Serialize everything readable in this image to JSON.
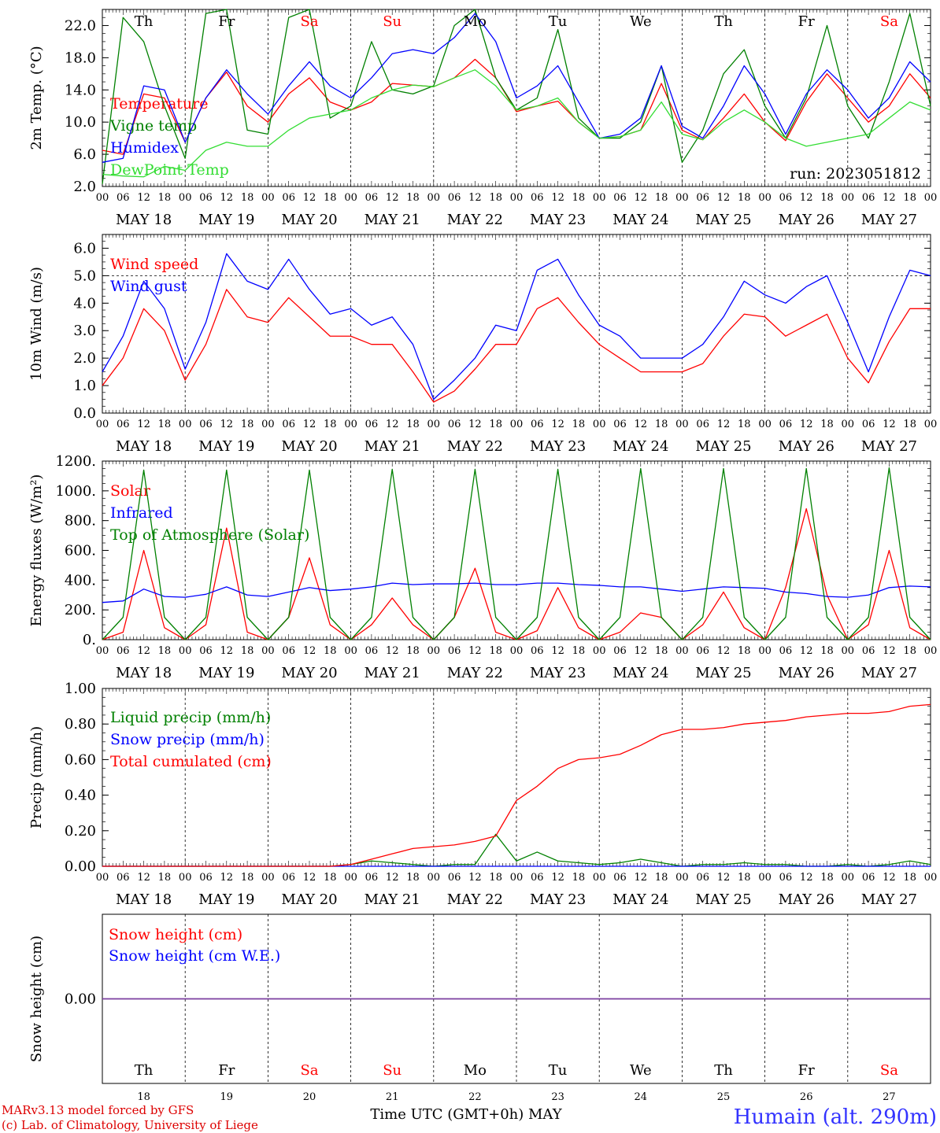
{
  "run_label": "run: 2023051812",
  "days": [
    "MAY 18",
    "MAY 19",
    "MAY 20",
    "MAY 21",
    "MAY 22",
    "MAY 23",
    "MAY 24",
    "MAY 25",
    "MAY 26",
    "MAY 27"
  ],
  "hour_ticks": [
    "00",
    "06",
    "12",
    "18"
  ],
  "hour_end": "00",
  "day_numbers": [
    "18",
    "19",
    "20",
    "21",
    "22",
    "23",
    "24",
    "25",
    "26",
    "27"
  ],
  "weekdays": [
    "Th",
    "Fr",
    "Sa",
    "Su",
    "Mo",
    "Tu",
    "We",
    "Th",
    "Fr",
    "Sa"
  ],
  "weekend_flags": [
    false,
    false,
    true,
    true,
    false,
    false,
    false,
    false,
    false,
    true
  ],
  "colors": {
    "red": "#ff0000",
    "green": "#008000",
    "blue": "#0000ff",
    "lightgreen": "#33dd33",
    "purple": "#7b3fa0",
    "station": "#3333ff",
    "footer": "#dd0000"
  },
  "footer": {
    "model": "MARv3.13 model forced by GFS",
    "credit": "(c) Lab. of Climatology, University of Liege",
    "xlabel": "Time UTC (GMT+0h) MAY",
    "station": "Humain (alt. 290m)"
  },
  "chart_data": [
    {
      "type": "line",
      "ylabel": "2m Temp. (°C)",
      "ylim": [
        2.0,
        24.0
      ],
      "yticks": [
        "2.0",
        "6.0",
        "10.0",
        "14.0",
        "18.0",
        "22.0"
      ],
      "ytick_values": [
        2,
        6,
        10,
        14,
        18,
        22
      ],
      "x_hours": [
        0,
        6,
        12,
        18,
        24,
        30,
        36,
        42,
        48,
        54,
        60,
        66,
        72,
        78,
        84,
        90,
        96,
        102,
        108,
        114,
        120,
        126,
        132,
        138,
        144,
        150,
        156,
        162,
        168,
        174,
        180,
        186,
        192,
        198,
        204,
        210,
        216,
        222,
        228,
        234,
        240
      ],
      "series": [
        {
          "name": "Temperature",
          "color": "#ff0000",
          "values": [
            6.5,
            6.0,
            13.5,
            13.0,
            7.5,
            13.0,
            16.2,
            12.0,
            10.0,
            13.5,
            15.5,
            12.5,
            11.5,
            12.5,
            14.8,
            14.6,
            14.4,
            15.5,
            17.8,
            15.5,
            11.3,
            12.0,
            12.6,
            10.0,
            8.0,
            8.2,
            9.0,
            14.8,
            9.0,
            7.8,
            10.5,
            13.5,
            10.0,
            7.7,
            12.5,
            16.0,
            13.0,
            10.0,
            12.0,
            16.0,
            13.0
          ]
        },
        {
          "name": "Vigne temp",
          "color": "#008000",
          "values": [
            2.3,
            23.0,
            20.0,
            12.0,
            5.5,
            23.5,
            24.0,
            9.0,
            8.5,
            23.0,
            24.0,
            10.5,
            12.0,
            20.0,
            14.0,
            13.5,
            14.5,
            22.0,
            24.0,
            15.5,
            11.5,
            13.0,
            21.5,
            10.5,
            8.0,
            8.0,
            10.0,
            17.0,
            5.0,
            9.0,
            16.0,
            19.0,
            12.0,
            8.0,
            13.0,
            22.0,
            12.0,
            8.0,
            15.0,
            23.5,
            12.0
          ]
        },
        {
          "name": "Humidex",
          "color": "#0000ff",
          "values": [
            5.0,
            5.5,
            14.5,
            14.0,
            7.5,
            13.0,
            16.5,
            13.5,
            11.0,
            14.5,
            17.5,
            14.5,
            13.0,
            15.5,
            18.5,
            19.0,
            18.5,
            20.5,
            23.5,
            20.0,
            13.0,
            14.5,
            17.0,
            12.5,
            8.0,
            8.5,
            10.5,
            17.0,
            9.5,
            8.0,
            12.0,
            17.0,
            13.5,
            8.5,
            13.5,
            16.5,
            14.0,
            10.5,
            13.0,
            17.5,
            15.0
          ]
        },
        {
          "name": "DewPoint Temp",
          "color": "#33dd33",
          "values": [
            3.5,
            3.3,
            3.2,
            4.5,
            4.0,
            6.5,
            7.5,
            7.0,
            7.0,
            9.0,
            10.5,
            11.0,
            11.5,
            13.0,
            14.0,
            14.6,
            14.4,
            15.5,
            16.5,
            14.5,
            11.5,
            12.0,
            13.0,
            10.0,
            8.0,
            8.2,
            9.0,
            12.5,
            8.5,
            7.8,
            10.0,
            11.5,
            10.0,
            8.0,
            7.0,
            7.5,
            8.0,
            8.5,
            10.5,
            12.5,
            11.5
          ]
        }
      ],
      "annotation": "run: 2023051812"
    },
    {
      "type": "line",
      "ylabel": "10m Wind (m/s)",
      "ylim": [
        0.0,
        6.5
      ],
      "yticks": [
        "0.0",
        "1.0",
        "2.0",
        "3.0",
        "4.0",
        "5.0",
        "6.0"
      ],
      "ytick_values": [
        0,
        1,
        2,
        3,
        4,
        5,
        6
      ],
      "reference_line": 5.0,
      "x_hours": [
        0,
        6,
        12,
        18,
        24,
        30,
        36,
        42,
        48,
        54,
        60,
        66,
        72,
        78,
        84,
        90,
        96,
        102,
        108,
        114,
        120,
        126,
        132,
        138,
        144,
        150,
        156,
        162,
        168,
        174,
        180,
        186,
        192,
        198,
        204,
        210,
        216,
        222,
        228,
        234,
        240
      ],
      "series": [
        {
          "name": "Wind speed",
          "color": "#ff0000",
          "values": [
            1.0,
            2.0,
            3.8,
            3.0,
            1.2,
            2.5,
            4.5,
            3.5,
            3.3,
            4.2,
            3.5,
            2.8,
            2.8,
            2.5,
            2.5,
            1.5,
            0.4,
            0.8,
            1.6,
            2.5,
            2.5,
            3.8,
            4.2,
            3.3,
            2.5,
            2.0,
            1.5,
            1.5,
            1.5,
            1.8,
            2.8,
            3.6,
            3.5,
            2.8,
            3.2,
            3.6,
            2.0,
            1.1,
            2.6,
            3.8,
            3.8
          ]
        },
        {
          "name": "Wind gust",
          "color": "#0000ff",
          "values": [
            1.5,
            2.8,
            4.8,
            3.8,
            1.6,
            3.3,
            5.8,
            4.8,
            4.5,
            5.6,
            4.5,
            3.6,
            3.8,
            3.2,
            3.5,
            2.5,
            0.5,
            1.2,
            2.0,
            3.2,
            3.0,
            5.2,
            5.6,
            4.3,
            3.2,
            2.8,
            2.0,
            2.0,
            2.0,
            2.5,
            3.5,
            4.8,
            4.3,
            4.0,
            4.6,
            5.0,
            3.3,
            1.5,
            3.5,
            5.2,
            5.0
          ]
        }
      ]
    },
    {
      "type": "line",
      "ylabel": "Energy fluxes (W/m²)",
      "ylim": [
        0,
        1200
      ],
      "yticks": [
        "0.",
        "200.",
        "400.",
        "600.",
        "800.",
        "1000.",
        "1200."
      ],
      "ytick_values": [
        0,
        200,
        400,
        600,
        800,
        1000,
        1200
      ],
      "x_hours": [
        0,
        6,
        12,
        18,
        24,
        30,
        36,
        42,
        48,
        54,
        60,
        66,
        72,
        78,
        84,
        90,
        96,
        102,
        108,
        114,
        120,
        126,
        132,
        138,
        144,
        150,
        156,
        162,
        168,
        174,
        180,
        186,
        192,
        198,
        204,
        210,
        216,
        222,
        228,
        234,
        240
      ],
      "series": [
        {
          "name": "Solar",
          "color": "#ff0000",
          "values": [
            0,
            50,
            600,
            80,
            0,
            100,
            750,
            50,
            0,
            150,
            550,
            100,
            0,
            100,
            280,
            100,
            0,
            150,
            480,
            50,
            0,
            60,
            350,
            80,
            0,
            50,
            180,
            150,
            0,
            100,
            320,
            80,
            0,
            350,
            880,
            300,
            0,
            100,
            600,
            80,
            0
          ]
        },
        {
          "name": "Infrared",
          "color": "#0000ff",
          "values": [
            250,
            260,
            340,
            290,
            285,
            305,
            355,
            300,
            290,
            320,
            350,
            330,
            340,
            355,
            380,
            370,
            375,
            375,
            380,
            370,
            370,
            380,
            380,
            370,
            365,
            355,
            355,
            340,
            325,
            340,
            355,
            350,
            345,
            320,
            310,
            290,
            285,
            300,
            350,
            360,
            355
          ]
        },
        {
          "name": "Top of Atmosphere (Solar)",
          "color": "#008000",
          "values": [
            0,
            150,
            1140,
            150,
            0,
            150,
            1140,
            150,
            0,
            150,
            1140,
            150,
            0,
            150,
            1145,
            150,
            0,
            150,
            1145,
            150,
            0,
            150,
            1145,
            150,
            0,
            150,
            1150,
            150,
            0,
            150,
            1150,
            150,
            0,
            150,
            1150,
            150,
            0,
            150,
            1155,
            150,
            0
          ]
        }
      ]
    },
    {
      "type": "line",
      "ylabel": "Precip (mm/h)",
      "ylim": [
        0.0,
        1.0
      ],
      "yticks": [
        "0.00",
        "0.20",
        "0.40",
        "0.60",
        "0.80",
        "1.00"
      ],
      "ytick_values": [
        0,
        0.2,
        0.4,
        0.6,
        0.8,
        1.0
      ],
      "x_hours": [
        0,
        6,
        12,
        18,
        24,
        30,
        36,
        42,
        48,
        54,
        60,
        66,
        72,
        78,
        84,
        90,
        96,
        102,
        108,
        114,
        120,
        126,
        132,
        138,
        144,
        150,
        156,
        162,
        168,
        174,
        180,
        186,
        192,
        198,
        204,
        210,
        216,
        222,
        228,
        234,
        240
      ],
      "series": [
        {
          "name": "Liquid precip (mm/h)",
          "color": "#008000",
          "values": [
            0,
            0,
            0,
            0,
            0,
            0,
            0,
            0,
            0,
            0,
            0,
            0,
            0.01,
            0.03,
            0.02,
            0.01,
            0,
            0.01,
            0.01,
            0.18,
            0.03,
            0.08,
            0.03,
            0.02,
            0.01,
            0.02,
            0.04,
            0.02,
            0,
            0.01,
            0.01,
            0.02,
            0.01,
            0.01,
            0,
            0,
            0.01,
            0,
            0.01,
            0.03,
            0.01
          ]
        },
        {
          "name": "Snow precip (mm/h)",
          "color": "#0000ff",
          "values": [
            0,
            0,
            0,
            0,
            0,
            0,
            0,
            0,
            0,
            0,
            0,
            0,
            0,
            0,
            0,
            0,
            0,
            0,
            0,
            0,
            0,
            0,
            0,
            0,
            0,
            0,
            0,
            0,
            0,
            0,
            0,
            0,
            0,
            0,
            0,
            0,
            0,
            0,
            0,
            0,
            0
          ]
        },
        {
          "name": "Total cumulated (cm)",
          "color": "#ff0000",
          "values": [
            0,
            0,
            0,
            0,
            0,
            0,
            0,
            0,
            0,
            0,
            0,
            0,
            0.01,
            0.04,
            0.07,
            0.1,
            0.11,
            0.12,
            0.14,
            0.17,
            0.37,
            0.45,
            0.55,
            0.6,
            0.61,
            0.63,
            0.68,
            0.74,
            0.77,
            0.77,
            0.78,
            0.8,
            0.81,
            0.82,
            0.84,
            0.85,
            0.86,
            0.86,
            0.87,
            0.9,
            0.91
          ]
        }
      ]
    },
    {
      "type": "line",
      "ylabel": "Snow height (cm)",
      "ylim": [
        -1.0,
        1.0
      ],
      "yticks": [
        "0.00"
      ],
      "ytick_values": [
        0
      ],
      "x_hours": [
        0,
        240
      ],
      "series": [
        {
          "name": "Snow height (cm)",
          "color": "#ff0000",
          "values": [
            0,
            0
          ]
        },
        {
          "name": "Snow height (cm W.E.)",
          "color": "#0000ff",
          "values": [
            0,
            0
          ]
        }
      ]
    }
  ]
}
